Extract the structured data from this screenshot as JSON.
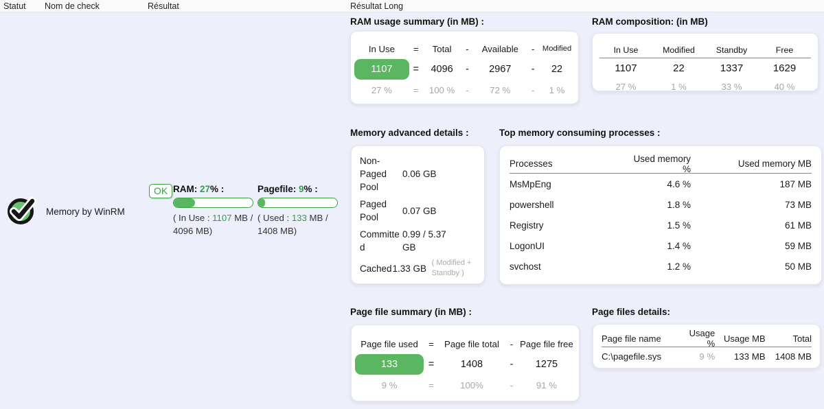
{
  "header": {
    "columns": [
      "Statut",
      "Nom de check",
      "Résultat",
      "Résultat Long"
    ]
  },
  "row": {
    "status_icon": "check-circle-ok",
    "name": "Memory by WinRM",
    "badge": "OK",
    "gauges": [
      {
        "prefix": "RAM: ",
        "percent": 27,
        "suffix": "% :",
        "detail_open": "( In Use : ",
        "value": "1107",
        "detail_close": " MB / 4096 MB)"
      },
      {
        "prefix": "Pagefile: ",
        "percent": 9,
        "suffix": "% :",
        "detail_open": "( Used : ",
        "value": "133",
        "detail_close": " MB / 1408 MB)"
      }
    ]
  },
  "panels": {
    "ram_summary": {
      "title": "RAM usage summary (in MB) :",
      "headers": [
        "In Use",
        "=",
        "Total",
        "-",
        "Available",
        "-",
        "Modified"
      ],
      "values": [
        "1107",
        "=",
        "4096",
        "-",
        "2967",
        "-",
        "22"
      ],
      "percents": [
        "27 %",
        "=",
        "100 %",
        "-",
        "72 %",
        "-",
        "1 %"
      ]
    },
    "ram_composition": {
      "title": "RAM composition: (in MB)",
      "headers": [
        "In Use",
        "Modified",
        "Standby",
        "Free"
      ],
      "values": [
        "1107",
        "22",
        "1337",
        "1629"
      ],
      "percents": [
        "27 %",
        "1 %",
        "33 %",
        "40 %"
      ]
    },
    "advanced": {
      "title": "Memory advanced details :",
      "rows": [
        {
          "label": "Non-Paged Pool",
          "value": "0.06 GB",
          "note": ""
        },
        {
          "label": "Paged Pool",
          "value": "0.07 GB",
          "note": ""
        },
        {
          "label": "Committed",
          "value": "0.99 / 5.37 GB",
          "note": ""
        },
        {
          "label": "Cached",
          "value": "1.33 GB",
          "note": "( Modified + Standby )"
        }
      ]
    },
    "processes": {
      "title": "Top memory consuming processes :",
      "headers": [
        "Processes",
        "Used memory %",
        "Used memory MB"
      ],
      "rows": [
        [
          "MsMpEng",
          "4.6 %",
          "187 MB"
        ],
        [
          "powershell",
          "1.8 %",
          "73 MB"
        ],
        [
          "Registry",
          "1.5 %",
          "61 MB"
        ],
        [
          "LogonUI",
          "1.4 %",
          "59 MB"
        ],
        [
          "svchost",
          "1.2 %",
          "50 MB"
        ]
      ]
    },
    "pagefile_summary": {
      "title": "Page file summary (in MB) :",
      "headers": [
        "Page file used",
        "=",
        "Page file total",
        "-",
        "Page file free"
      ],
      "values": [
        "133",
        "=",
        "1408",
        "-",
        "1275"
      ],
      "percents": [
        "9 %",
        "=",
        "100%",
        "-",
        "91 %"
      ]
    },
    "pagefile_details": {
      "title": "Page files details:",
      "headers": [
        "Page file name",
        "Usage %",
        "Usage MB",
        "Total"
      ],
      "rows": [
        [
          "C:\\pagefile.sys",
          "9 %",
          "133 MB",
          "1408 MB"
        ]
      ]
    }
  },
  "colors": {
    "green_text": "#2f9e44",
    "green_fill": "#5bb661",
    "green_border": "#3fa044",
    "row_bg": "#edeffa",
    "muted_text": "#a6a6a6"
  }
}
